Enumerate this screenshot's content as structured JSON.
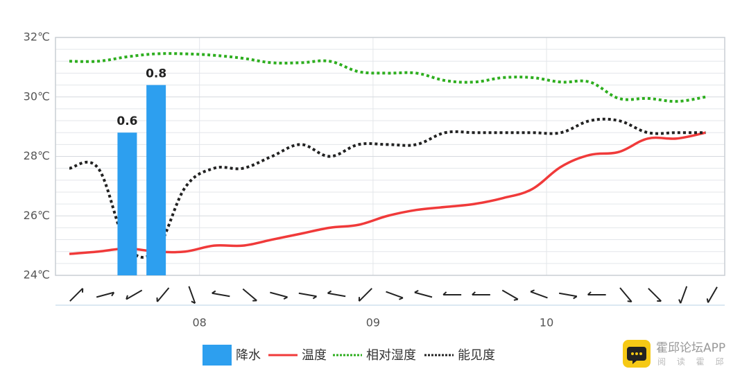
{
  "chart_data": {
    "type": "combo",
    "categories": [
      null,
      null,
      null,
      null,
      null,
      null,
      null,
      null,
      null,
      null,
      null,
      null,
      null,
      null,
      null,
      null,
      null,
      null,
      null,
      null,
      null,
      null,
      null
    ],
    "xlim": [
      -0.48,
      22.66
    ],
    "xticks": [
      {
        "value": 4.5,
        "label": "08"
      },
      {
        "value": 10.5,
        "label": "09"
      },
      {
        "value": 16.5,
        "label": "10"
      }
    ],
    "ylim": [
      24,
      32
    ],
    "yticks": [
      {
        "value": 24,
        "label": "24℃"
      },
      {
        "value": 26,
        "label": "26℃"
      },
      {
        "value": 28,
        "label": "28℃"
      },
      {
        "value": 30,
        "label": "30℃"
      },
      {
        "value": 32,
        "label": "32℃"
      }
    ],
    "minor_yticks": [
      24.4,
      24.8,
      25.2,
      25.6,
      26.4,
      26.8,
      27.2,
      27.6,
      28.4,
      28.8,
      29.2,
      29.6,
      30.4,
      30.8,
      31.2,
      31.6
    ],
    "y2lim": [
      0,
      1
    ],
    "grid": true,
    "legend": "bottom",
    "series": [
      {
        "name": "降水",
        "type": "bar",
        "axis": "y2",
        "color": "#2d9fef",
        "values": [
          null,
          null,
          0.6,
          0.8,
          null,
          null,
          null,
          null,
          null,
          null,
          null,
          null,
          null,
          null,
          null,
          null,
          null,
          null,
          null,
          null,
          null,
          null,
          null
        ]
      },
      {
        "name": "温度",
        "type": "line",
        "style": "solid",
        "color": "#f03a3a",
        "values": [
          24.72,
          24.8,
          24.9,
          24.8,
          24.8,
          25.0,
          25.0,
          25.2,
          25.4,
          25.6,
          25.7,
          26.0,
          26.2,
          26.3,
          26.4,
          26.6,
          26.9,
          27.65,
          28.05,
          28.15,
          28.6,
          28.6,
          28.8
        ]
      },
      {
        "name": "相对湿度",
        "type": "line",
        "style": "dotted",
        "color": "#2eae1f",
        "values": [
          31.2,
          31.2,
          31.35,
          31.45,
          31.45,
          31.4,
          31.3,
          31.15,
          31.15,
          31.2,
          30.85,
          30.8,
          30.8,
          30.55,
          30.5,
          30.65,
          30.65,
          30.5,
          30.5,
          29.95,
          29.95,
          29.85,
          30.0
        ]
      },
      {
        "name": "能见度",
        "type": "line",
        "style": "dotted",
        "color": "#222222",
        "values": [
          27.6,
          27.6,
          25.0,
          24.85,
          26.95,
          27.6,
          27.6,
          28.0,
          28.4,
          28.0,
          28.4,
          28.4,
          28.4,
          28.8,
          28.8,
          28.8,
          28.8,
          28.8,
          29.2,
          29.2,
          28.8,
          28.8,
          28.8
        ]
      }
    ],
    "wind": [
      -45,
      -15,
      150,
      130,
      70,
      190,
      40,
      15,
      10,
      190,
      135,
      20,
      195,
      180,
      180,
      30,
      200,
      10,
      180,
      50,
      45,
      110,
      120
    ],
    "watermark": {
      "title": "霍邱论坛APP",
      "subtitle": "阅 读 霍 邱"
    }
  }
}
